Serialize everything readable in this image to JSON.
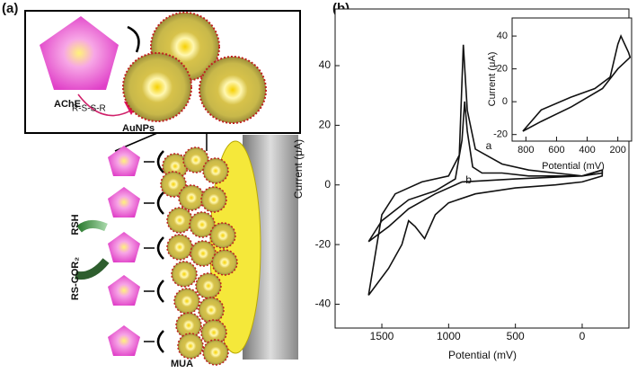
{
  "panel_a": {
    "label": "(a)",
    "enzyme": "AChE",
    "linker": "R-S-S-R",
    "particles": "AuNPs",
    "thiol": "RSH",
    "product": "RS-COR₂",
    "monolayer": "MUA"
  },
  "chart_data": [
    {
      "type": "line",
      "label": "(b)",
      "x_label": "Potential  (mV)",
      "y_label": "Current  (μA)",
      "xlim": [
        1850,
        -350
      ],
      "ylim": [
        -48,
        59
      ],
      "xticks": [
        1500,
        1000,
        500,
        0
      ],
      "yticks": [
        -40,
        -20,
        0,
        20,
        40
      ],
      "series": [
        {
          "name": "a",
          "color": "#111111",
          "x": [
            1600,
            1500,
            1400,
            1200,
            1000,
            920,
            890,
            860,
            800,
            720,
            600,
            400,
            200,
            0,
            -150,
            -150,
            0,
            200,
            500,
            800,
            1000,
            1100,
            1180,
            1250,
            1300,
            1350,
            1450,
            1600
          ],
          "values": [
            -37,
            -10,
            -3,
            1,
            3,
            10,
            47,
            25,
            12,
            10,
            7,
            5,
            4,
            3,
            5,
            3,
            1,
            0,
            -1,
            -3,
            -6,
            -10,
            -18,
            -14,
            -12,
            -20,
            -28,
            -37
          ]
        },
        {
          "name": "b",
          "color": "#111111",
          "x": [
            1600,
            1500,
            1300,
            1100,
            950,
            900,
            880,
            860,
            820,
            750,
            600,
            400,
            200,
            0,
            -150,
            -150,
            0,
            500,
            900,
            1100,
            1300,
            1450,
            1600
          ],
          "values": [
            -19,
            -12,
            -5,
            -2,
            2,
            15,
            28,
            18,
            6,
            4,
            4,
            3,
            3,
            3,
            5,
            4,
            3,
            2,
            1,
            -3,
            -8,
            -14,
            -19
          ]
        }
      ]
    },
    {
      "type": "line",
      "x_label": "Potential  (mV)",
      "y_label": "Current  (μA)",
      "xlim": [
        890,
        110
      ],
      "ylim": [
        -24,
        51
      ],
      "xticks": [
        800,
        600,
        400,
        200
      ],
      "yticks": [
        -20,
        0,
        20,
        40
      ],
      "series": [
        {
          "color": "#111111",
          "x": [
            820,
            700,
            500,
            350,
            250,
            200,
            180,
            130,
            120,
            200,
            300,
            500,
            700,
            820
          ],
          "values": [
            -18,
            -5,
            3,
            8,
            15,
            35,
            40,
            30,
            27,
            20,
            8,
            -3,
            -12,
            -18
          ]
        }
      ]
    }
  ]
}
